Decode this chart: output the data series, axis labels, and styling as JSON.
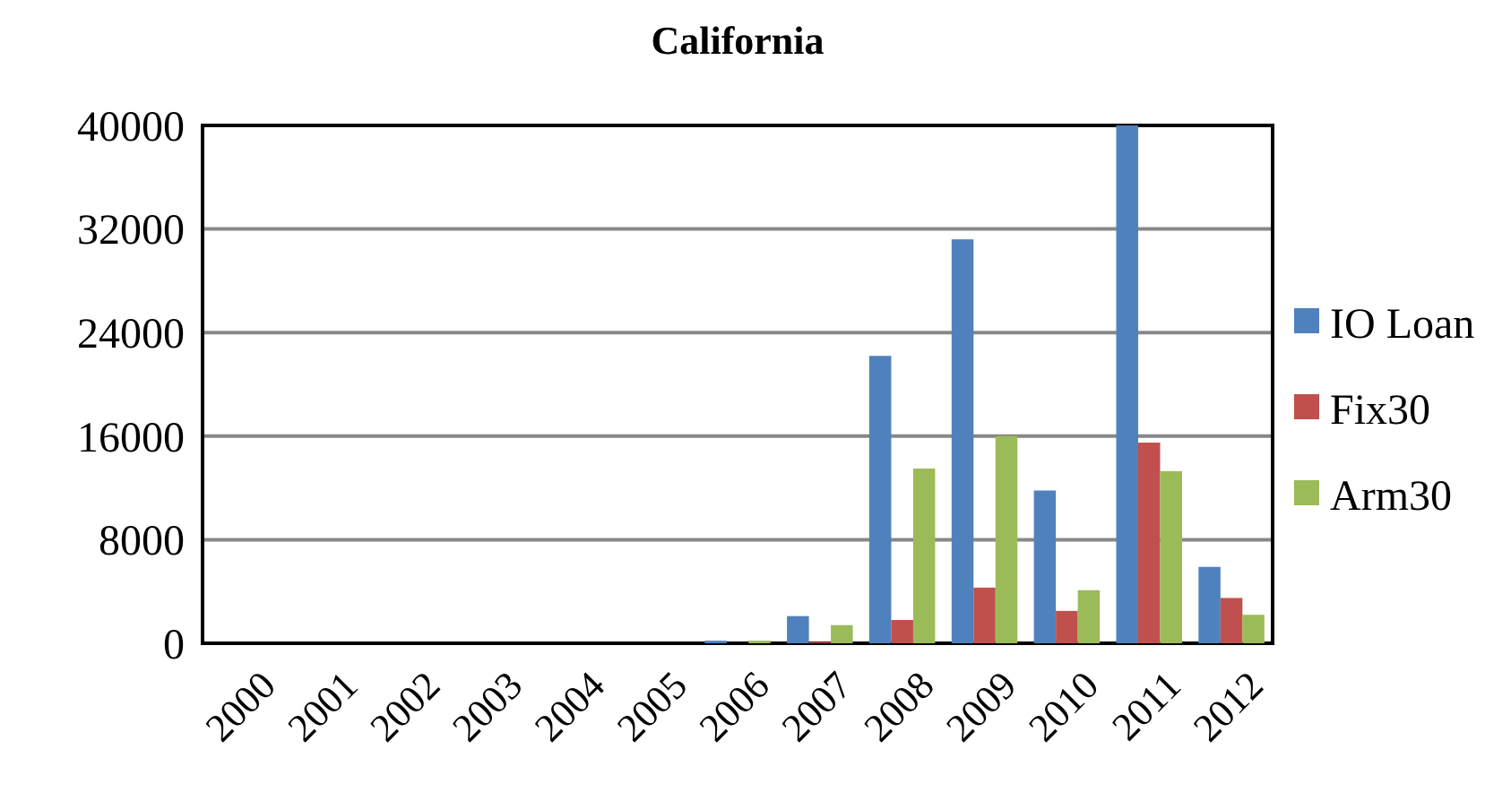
{
  "chart_data": {
    "type": "bar",
    "title": "California",
    "categories": [
      "2000",
      "2001",
      "2002",
      "2003",
      "2004",
      "2005",
      "2006",
      "2007",
      "2008",
      "2009",
      "2010",
      "2011",
      "2012"
    ],
    "series": [
      {
        "name": "IO Loan",
        "color": "#4f81bd",
        "values": [
          0,
          0,
          0,
          0,
          0,
          0,
          200,
          2100,
          22200,
          31200,
          11800,
          40000,
          5900
        ]
      },
      {
        "name": "Fix30",
        "color": "#c0504d",
        "values": [
          0,
          0,
          0,
          0,
          0,
          0,
          0,
          100,
          1800,
          4300,
          2500,
          15500,
          3500
        ]
      },
      {
        "name": "Arm30",
        "color": "#9bbb59",
        "values": [
          0,
          0,
          0,
          0,
          0,
          0,
          200,
          1400,
          13500,
          16000,
          4100,
          13300,
          2200
        ]
      }
    ],
    "ylim": [
      0,
      40000
    ],
    "yticks": [
      0,
      8000,
      16000,
      24000,
      32000,
      40000
    ],
    "grid": "y",
    "legend": "right"
  }
}
